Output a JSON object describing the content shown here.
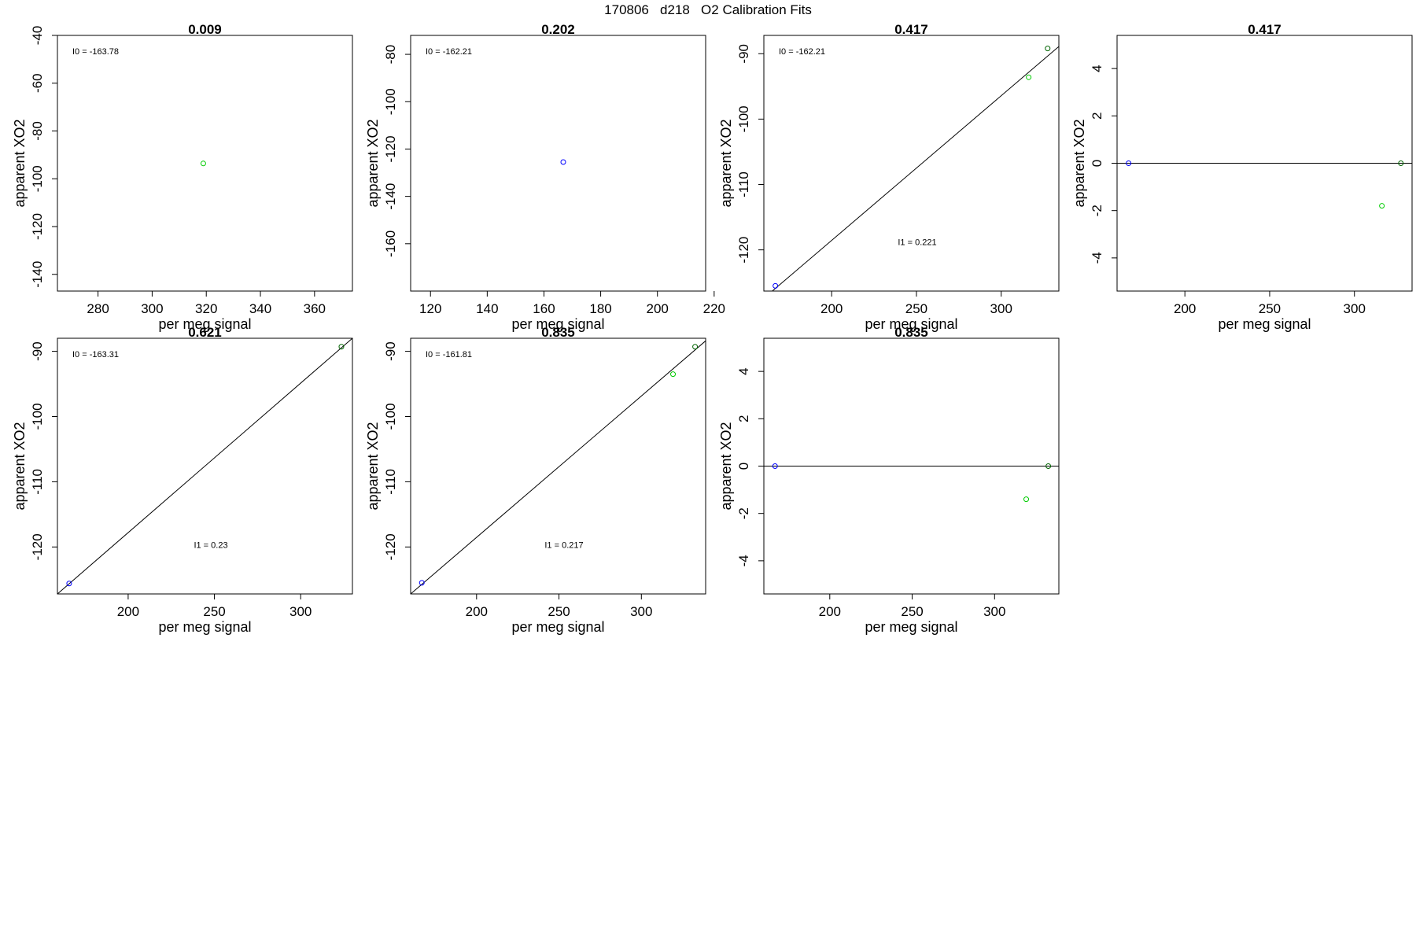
{
  "figure_title": "170806   d218   O2 Calibration Fits",
  "colors": {
    "blue": "#0000ff",
    "green": "#00cc00",
    "dark_green": "#006400",
    "black": "#000000"
  },
  "chart_data": [
    {
      "type": "scatter",
      "title": "0.009",
      "xlabel": "per meg signal",
      "ylabel": "apparent XO2",
      "xlim": [
        265,
        374
      ],
      "ylim": [
        -147,
        -40
      ],
      "xticks": [
        "280",
        "300",
        "320",
        "340",
        "360"
      ],
      "xtick_values": [
        280,
        300,
        320,
        340,
        360
      ],
      "yticks": [
        "-40",
        "-60",
        "-80",
        "-100",
        "-120",
        "-140"
      ],
      "ytick_values": [
        -40,
        -60,
        -80,
        -100,
        -120,
        -140
      ],
      "points": [
        {
          "x": 318.9,
          "y": -93.6,
          "color": "green"
        }
      ],
      "lines": [],
      "annotations": [
        {
          "text": "I0 =  -163.78",
          "pos": "top-left"
        }
      ]
    },
    {
      "type": "scatter",
      "title": "0.202",
      "xlabel": "per meg signal",
      "ylabel": "apparent XO2",
      "xlim": [
        113,
        217
      ],
      "ylim": [
        -180,
        -72
      ],
      "xticks": [
        "120",
        "140",
        "160",
        "180",
        "200",
        "220"
      ],
      "xtick_values": [
        120,
        140,
        160,
        180,
        200,
        220
      ],
      "yticks": [
        "-80",
        "-100",
        "-120",
        "-140",
        "-160"
      ],
      "ytick_values": [
        -80,
        -100,
        -120,
        -140,
        -160
      ],
      "points": [
        {
          "x": 166.8,
          "y": -125.5,
          "color": "blue"
        }
      ],
      "lines": [],
      "annotations": [
        {
          "text": "I0 =  -162.21",
          "pos": "top-left"
        }
      ]
    },
    {
      "type": "scatter",
      "title": "0.417",
      "xlabel": "per meg signal",
      "ylabel": "apparent XO2",
      "xlim": [
        160,
        334
      ],
      "ylim": [
        -126.3,
        -87.2
      ],
      "xticks": [
        "200",
        "250",
        "300"
      ],
      "xtick_values": [
        200,
        250,
        300
      ],
      "yticks": [
        "-90",
        "-100",
        "-110",
        "-120"
      ],
      "ytick_values": [
        -90,
        -100,
        -110,
        -120
      ],
      "points": [
        {
          "x": 166.8,
          "y": -125.5,
          "color": "blue"
        },
        {
          "x": 316.2,
          "y": -93.6,
          "color": "green"
        },
        {
          "x": 327.4,
          "y": -89.2,
          "color": "dark_green"
        }
      ],
      "lines": [
        {
          "kind": "fit",
          "x": [
            160,
            334
          ],
          "y": [
            -127.4,
            -88.9
          ]
        }
      ],
      "annotations": [
        {
          "text": "I0 =  -162.21",
          "pos": "top-left"
        },
        {
          "text": "I1 =  0.221",
          "pos": "lower-middle"
        }
      ]
    },
    {
      "type": "scatter",
      "title": "0.417",
      "xlabel": "per meg signal",
      "ylabel": "apparent XO2",
      "xlim": [
        160,
        334
      ],
      "ylim": [
        -5.4,
        5.4
      ],
      "xticks": [
        "200",
        "250",
        "300"
      ],
      "xtick_values": [
        200,
        250,
        300
      ],
      "yticks": [
        "4",
        "2",
        "0",
        "-2",
        "-4"
      ],
      "ytick_values": [
        4,
        2,
        0,
        -2,
        -4
      ],
      "points": [
        {
          "x": 166.8,
          "y": 0,
          "color": "blue"
        },
        {
          "x": 316.2,
          "y": -1.8,
          "color": "green"
        },
        {
          "x": 327.4,
          "y": 0,
          "color": "dark_green"
        }
      ],
      "lines": [
        {
          "kind": "zero",
          "x": [
            160,
            334
          ],
          "y": [
            0,
            0
          ]
        }
      ],
      "annotations": []
    },
    {
      "type": "scatter",
      "title": "0.621",
      "xlabel": "per meg signal",
      "ylabel": "apparent XO2",
      "xlim": [
        159,
        330
      ],
      "ylim": [
        -127.2,
        -88.0
      ],
      "xticks": [
        "200",
        "250",
        "300"
      ],
      "xtick_values": [
        200,
        250,
        300
      ],
      "yticks": [
        "-90",
        "-100",
        "-110",
        "-120"
      ],
      "ytick_values": [
        -90,
        -100,
        -110,
        -120
      ],
      "points": [
        {
          "x": 165.8,
          "y": -125.6,
          "color": "blue"
        },
        {
          "x": 323.6,
          "y": -89.3,
          "color": "dark_green"
        }
      ],
      "lines": [
        {
          "kind": "fit",
          "x": [
            159,
            330
          ],
          "y": [
            -127.2,
            -88.0
          ]
        }
      ],
      "annotations": [
        {
          "text": "I0 =  -163.31",
          "pos": "top-left"
        },
        {
          "text": "I1 =  0.23",
          "pos": "lower-middle"
        }
      ]
    },
    {
      "type": "scatter",
      "title": "0.835",
      "xlabel": "per meg signal",
      "ylabel": "apparent XO2",
      "xlim": [
        160,
        339
      ],
      "ylim": [
        -127.2,
        -88.0
      ],
      "xticks": [
        "200",
        "250",
        "300"
      ],
      "xtick_values": [
        200,
        250,
        300
      ],
      "yticks": [
        "-90",
        "-100",
        "-110",
        "-120"
      ],
      "ytick_values": [
        -90,
        -100,
        -110,
        -120
      ],
      "points": [
        {
          "x": 166.8,
          "y": -125.5,
          "color": "blue"
        },
        {
          "x": 319.2,
          "y": -93.5,
          "color": "green"
        },
        {
          "x": 332.6,
          "y": -89.3,
          "color": "dark_green"
        }
      ],
      "lines": [
        {
          "kind": "fit",
          "x": [
            160,
            339
          ],
          "y": [
            -127.2,
            -88.4
          ]
        }
      ],
      "annotations": [
        {
          "text": "I0 =  -161.81",
          "pos": "top-left"
        },
        {
          "text": "I1 =  0.217",
          "pos": "lower-middle"
        }
      ]
    },
    {
      "type": "scatter",
      "title": "0.835",
      "xlabel": "per meg signal",
      "ylabel": "apparent XO2",
      "xlim": [
        160,
        339
      ],
      "ylim": [
        -5.4,
        5.4
      ],
      "xticks": [
        "200",
        "250",
        "300"
      ],
      "xtick_values": [
        200,
        250,
        300
      ],
      "yticks": [
        "4",
        "2",
        "0",
        "-2",
        "-4"
      ],
      "ytick_values": [
        4,
        2,
        0,
        -2,
        -4
      ],
      "points": [
        {
          "x": 166.8,
          "y": 0,
          "color": "blue"
        },
        {
          "x": 319.2,
          "y": -1.4,
          "color": "green"
        },
        {
          "x": 332.6,
          "y": 0,
          "color": "dark_green"
        }
      ],
      "lines": [
        {
          "kind": "zero",
          "x": [
            160,
            339
          ],
          "y": [
            0,
            0
          ]
        }
      ],
      "annotations": []
    }
  ]
}
